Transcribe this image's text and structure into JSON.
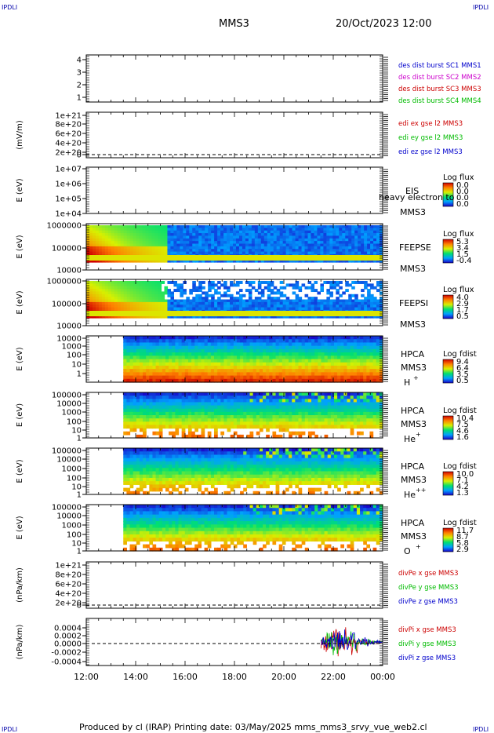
{
  "header": {
    "corner_tl": "IPDLI",
    "corner_tr": "IPDLI",
    "corner_bl": "IPDLI",
    "corner_br": "IPDLI",
    "mission": "MMS3",
    "datetime": "20/Oct/2023 12:00"
  },
  "footer": {
    "text": "Produced by cl (IRAP)   Printing date: 03/May/2025   mms_mms3_srvy_vue_web2.cl"
  },
  "chart_data": [
    {
      "type": "line",
      "ylabel": "",
      "ytick_labels": [
        "4",
        "3",
        "2",
        "1"
      ],
      "legend": [
        {
          "text": "des dist burst SC1 MMS1",
          "color": "#0000cc"
        },
        {
          "text": "des dist burst SC2 MMS2",
          "color": "#cc00cc"
        },
        {
          "text": "des dist burst SC3 MMS3",
          "color": "#cc0000"
        },
        {
          "text": "des dist burst SC4 MMS4",
          "color": "#00bb00"
        }
      ],
      "series": []
    },
    {
      "type": "line",
      "ylabel": "(mV/m)",
      "ytick_labels": [
        "1e+21",
        "8e+20",
        "6e+20",
        "4e+20",
        "2e+20",
        "0"
      ],
      "zero_dashed": true,
      "legend": [
        {
          "text": "edi ex gse l2 MMS3",
          "color": "#cc0000"
        },
        {
          "text": "edi ey gse l2 MMS3",
          "color": "#00bb00"
        },
        {
          "text": "edi ez gse l2 MMS3",
          "color": "#0000cc"
        }
      ],
      "series": []
    },
    {
      "type": "heatmap",
      "ylabel": "E (eV)",
      "ytick_labels": [
        "1e+07",
        "1e+06",
        "1e+05",
        "1e+04"
      ],
      "right_labels": [
        "EIS",
        "MMS3"
      ],
      "overlay_text": "heavy electron to",
      "colorbar": {
        "title": "Log flux",
        "ticks": [
          "0.0",
          "0.0",
          "0.0",
          "0.0"
        ]
      }
    },
    {
      "type": "heatmap",
      "ylabel": "E (eV)",
      "ytick_labels": [
        "1000000",
        "100000",
        "10000"
      ],
      "right_labels": [
        "FEEPSE",
        "MMS3"
      ],
      "colorbar": {
        "title": "Log flux",
        "ticks": [
          "5.3",
          "3.4",
          "1.5",
          "-0.4"
        ]
      }
    },
    {
      "type": "heatmap",
      "ylabel": "E (eV)",
      "ytick_labels": [
        "1000000",
        "100000",
        "10000"
      ],
      "right_labels": [
        "FEEPSI",
        "MMS3"
      ],
      "colorbar": {
        "title": "Log flux",
        "ticks": [
          "4.0",
          "2.9",
          "1.7",
          "0.5"
        ]
      }
    },
    {
      "type": "heatmap",
      "ylabel": "E (eV)",
      "ytick_labels": [
        "10000",
        "1000",
        "100",
        "10",
        "1"
      ],
      "right_labels": [
        "HPCA",
        "MMS3",
        "H",
        "+"
      ],
      "colorbar": {
        "title": "Log fdist",
        "ticks": [
          "9.4",
          "6.4",
          "3.5",
          "0.5"
        ]
      }
    },
    {
      "type": "heatmap",
      "ylabel": "E (eV)",
      "ytick_labels": [
        "100000",
        "10000",
        "1000",
        "100",
        "10",
        "1"
      ],
      "right_labels": [
        "HPCA",
        "MMS3",
        "He",
        "+"
      ],
      "colorbar": {
        "title": "Log fdist",
        "ticks": [
          "10.4",
          "7.5",
          "4.6",
          "1.6"
        ]
      }
    },
    {
      "type": "heatmap",
      "ylabel": "E (eV)",
      "ytick_labels": [
        "100000",
        "10000",
        "1000",
        "100",
        "10",
        "1"
      ],
      "right_labels": [
        "HPCA",
        "MMS3",
        "He",
        "++"
      ],
      "colorbar": {
        "title": "Log fdist",
        "ticks": [
          "10.0",
          "7.1",
          "4.2",
          "1.3"
        ]
      }
    },
    {
      "type": "heatmap",
      "ylabel": "E (eV)",
      "ytick_labels": [
        "100000",
        "10000",
        "1000",
        "100",
        "10",
        "1"
      ],
      "right_labels": [
        "HPCA",
        "MMS3",
        "O",
        "+"
      ],
      "colorbar": {
        "title": "Log fdist",
        "ticks": [
          "11.7",
          "8.7",
          "5.8",
          "2.9"
        ]
      }
    },
    {
      "type": "line",
      "ylabel": "(nPa/km)",
      "ytick_labels": [
        "1e+21",
        "8e+20",
        "6e+20",
        "4e+20",
        "2e+20",
        "0"
      ],
      "zero_dashed": true,
      "legend": [
        {
          "text": "divPe x gse MMS3",
          "color": "#cc0000"
        },
        {
          "text": "divPe y gse MMS3",
          "color": "#00bb00"
        },
        {
          "text": "divPe z gse MMS3",
          "color": "#0000cc"
        }
      ],
      "series": []
    },
    {
      "type": "line",
      "ylabel": "(nPa/km)",
      "ytick_labels": [
        "0.0004",
        "0.0002",
        "0.0000",
        "-0.0002",
        "-0.0004"
      ],
      "ylim": [
        -0.0005,
        0.0005
      ],
      "zero_dashed": true,
      "legend": [
        {
          "text": "divPi x gse MMS3",
          "color": "#cc0000"
        },
        {
          "text": "divPi y gse MMS3",
          "color": "#00bb00"
        },
        {
          "text": "divPi z gse MMS3",
          "color": "#0000cc"
        }
      ],
      "series": [
        {
          "color": "#cc0000",
          "x": [
            "21:30",
            "21:45",
            "22:00",
            "22:15",
            "22:30",
            "23:00",
            "23:30",
            "23:50",
            "24:00"
          ],
          "values": [
            0.0002,
            -0.0003,
            0.0004,
            -0.0002,
            0.0003,
            0.0001,
            5e-05,
            2e-05,
            0.0
          ]
        },
        {
          "color": "#00bb00",
          "x": [
            "21:30",
            "21:45",
            "22:00",
            "22:15",
            "22:30",
            "23:00",
            "23:30",
            "23:50",
            "24:00"
          ],
          "values": [
            -0.0001,
            0.0002,
            -0.0003,
            0.0003,
            -0.0002,
            0.0001,
            -5e-05,
            2e-05,
            0.0
          ]
        },
        {
          "color": "#0000cc",
          "x": [
            "21:30",
            "21:45",
            "22:00",
            "22:15",
            "22:30",
            "23:00",
            "23:30",
            "23:50",
            "24:00"
          ],
          "values": [
            0.0001,
            -0.0002,
            0.0002,
            -0.0003,
            0.0002,
            -0.0001,
            5e-05,
            -2e-05,
            0.0
          ]
        }
      ]
    }
  ],
  "xaxis": {
    "tick_labels": [
      "12:00",
      "14:00",
      "16:00",
      "18:00",
      "20:00",
      "22:00",
      "00:00"
    ],
    "start_hour": 12,
    "end_hour": 24
  }
}
